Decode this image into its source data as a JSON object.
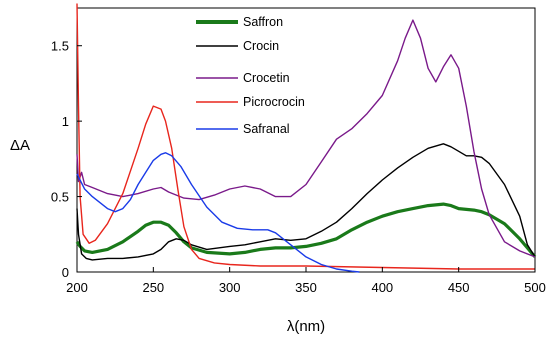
{
  "chart_data": {
    "type": "line",
    "title": "",
    "xlabel": "λ(nm)",
    "ylabel": "ΔA",
    "xlim": [
      200,
      500
    ],
    "ylim": [
      0,
      1.75
    ],
    "xticks": [
      "200",
      "250",
      "300",
      "350",
      "400",
      "450",
      "500"
    ],
    "yticks": [
      "0",
      "0.5",
      "1",
      "1.5"
    ],
    "grid": false,
    "legend_position": "top-center",
    "series": [
      {
        "name": "Saffron",
        "color": "#1a7a1a",
        "points": [
          [
            200,
            0.2
          ],
          [
            202,
            0.17
          ],
          [
            205,
            0.14
          ],
          [
            210,
            0.13
          ],
          [
            220,
            0.15
          ],
          [
            230,
            0.2
          ],
          [
            240,
            0.27
          ],
          [
            245,
            0.31
          ],
          [
            250,
            0.33
          ],
          [
            255,
            0.33
          ],
          [
            260,
            0.31
          ],
          [
            265,
            0.26
          ],
          [
            270,
            0.2
          ],
          [
            275,
            0.16
          ],
          [
            285,
            0.13
          ],
          [
            300,
            0.12
          ],
          [
            310,
            0.13
          ],
          [
            320,
            0.15
          ],
          [
            330,
            0.16
          ],
          [
            340,
            0.16
          ],
          [
            350,
            0.17
          ],
          [
            360,
            0.19
          ],
          [
            370,
            0.22
          ],
          [
            380,
            0.28
          ],
          [
            390,
            0.33
          ],
          [
            400,
            0.37
          ],
          [
            410,
            0.4
          ],
          [
            420,
            0.42
          ],
          [
            430,
            0.44
          ],
          [
            440,
            0.45
          ],
          [
            445,
            0.44
          ],
          [
            450,
            0.42
          ],
          [
            460,
            0.41
          ],
          [
            465,
            0.4
          ],
          [
            470,
            0.38
          ],
          [
            480,
            0.32
          ],
          [
            490,
            0.22
          ],
          [
            495,
            0.16
          ],
          [
            500,
            0.1
          ]
        ]
      },
      {
        "name": "Crocin",
        "color": "#000000",
        "points": [
          [
            200,
            0.42
          ],
          [
            201,
            0.25
          ],
          [
            203,
            0.12
          ],
          [
            206,
            0.09
          ],
          [
            210,
            0.08
          ],
          [
            220,
            0.09
          ],
          [
            230,
            0.09
          ],
          [
            240,
            0.1
          ],
          [
            250,
            0.12
          ],
          [
            255,
            0.15
          ],
          [
            260,
            0.2
          ],
          [
            265,
            0.22
          ],
          [
            270,
            0.21
          ],
          [
            275,
            0.18
          ],
          [
            285,
            0.15
          ],
          [
            300,
            0.17
          ],
          [
            310,
            0.18
          ],
          [
            320,
            0.2
          ],
          [
            330,
            0.22
          ],
          [
            340,
            0.21
          ],
          [
            350,
            0.22
          ],
          [
            360,
            0.27
          ],
          [
            370,
            0.33
          ],
          [
            380,
            0.42
          ],
          [
            390,
            0.52
          ],
          [
            400,
            0.61
          ],
          [
            410,
            0.69
          ],
          [
            420,
            0.76
          ],
          [
            430,
            0.82
          ],
          [
            440,
            0.85
          ],
          [
            445,
            0.83
          ],
          [
            450,
            0.8
          ],
          [
            455,
            0.77
          ],
          [
            460,
            0.77
          ],
          [
            465,
            0.76
          ],
          [
            470,
            0.72
          ],
          [
            480,
            0.58
          ],
          [
            490,
            0.37
          ],
          [
            495,
            0.18
          ],
          [
            500,
            0.1
          ]
        ]
      },
      {
        "name": "Crocetin",
        "color": "#7a1a8a",
        "points": [
          [
            200,
            0.78
          ],
          [
            201,
            0.6
          ],
          [
            203,
            0.66
          ],
          [
            205,
            0.58
          ],
          [
            210,
            0.56
          ],
          [
            220,
            0.52
          ],
          [
            230,
            0.5
          ],
          [
            240,
            0.52
          ],
          [
            250,
            0.55
          ],
          [
            255,
            0.56
          ],
          [
            260,
            0.53
          ],
          [
            270,
            0.49
          ],
          [
            280,
            0.48
          ],
          [
            290,
            0.51
          ],
          [
            300,
            0.55
          ],
          [
            310,
            0.57
          ],
          [
            320,
            0.55
          ],
          [
            330,
            0.5
          ],
          [
            340,
            0.5
          ],
          [
            350,
            0.58
          ],
          [
            360,
            0.73
          ],
          [
            370,
            0.88
          ],
          [
            380,
            0.95
          ],
          [
            390,
            1.05
          ],
          [
            400,
            1.17
          ],
          [
            410,
            1.4
          ],
          [
            415,
            1.55
          ],
          [
            420,
            1.67
          ],
          [
            425,
            1.55
          ],
          [
            430,
            1.35
          ],
          [
            435,
            1.26
          ],
          [
            440,
            1.36
          ],
          [
            445,
            1.44
          ],
          [
            450,
            1.35
          ],
          [
            455,
            1.1
          ],
          [
            460,
            0.8
          ],
          [
            465,
            0.55
          ],
          [
            470,
            0.38
          ],
          [
            480,
            0.2
          ],
          [
            490,
            0.14
          ],
          [
            500,
            0.1
          ]
        ]
      },
      {
        "name": "Picrocrocin",
        "color": "#e8261d",
        "points": [
          [
            200,
            1.78
          ],
          [
            201,
            1.1
          ],
          [
            202,
            0.5
          ],
          [
            204,
            0.25
          ],
          [
            206,
            0.22
          ],
          [
            208,
            0.19
          ],
          [
            212,
            0.21
          ],
          [
            220,
            0.32
          ],
          [
            230,
            0.52
          ],
          [
            240,
            0.82
          ],
          [
            245,
            0.98
          ],
          [
            250,
            1.1
          ],
          [
            255,
            1.08
          ],
          [
            258,
            1.0
          ],
          [
            262,
            0.82
          ],
          [
            266,
            0.55
          ],
          [
            270,
            0.3
          ],
          [
            275,
            0.15
          ],
          [
            280,
            0.09
          ],
          [
            290,
            0.06
          ],
          [
            300,
            0.05
          ],
          [
            320,
            0.04
          ],
          [
            350,
            0.04
          ],
          [
            400,
            0.03
          ],
          [
            450,
            0.02
          ],
          [
            500,
            0.02
          ]
        ]
      },
      {
        "name": "Safranal",
        "color": "#1a3be8",
        "points": [
          [
            200,
            0.65
          ],
          [
            205,
            0.55
          ],
          [
            210,
            0.5
          ],
          [
            215,
            0.46
          ],
          [
            220,
            0.42
          ],
          [
            225,
            0.4
          ],
          [
            230,
            0.42
          ],
          [
            235,
            0.48
          ],
          [
            240,
            0.58
          ],
          [
            245,
            0.66
          ],
          [
            250,
            0.74
          ],
          [
            255,
            0.78
          ],
          [
            258,
            0.79
          ],
          [
            262,
            0.77
          ],
          [
            268,
            0.7
          ],
          [
            275,
            0.58
          ],
          [
            285,
            0.43
          ],
          [
            295,
            0.33
          ],
          [
            305,
            0.29
          ],
          [
            315,
            0.28
          ],
          [
            325,
            0.28
          ],
          [
            330,
            0.26
          ],
          [
            340,
            0.18
          ],
          [
            350,
            0.1
          ],
          [
            360,
            0.05
          ],
          [
            370,
            0.02
          ],
          [
            380,
            0.005
          ],
          [
            385,
            0.0
          ]
        ]
      }
    ]
  }
}
